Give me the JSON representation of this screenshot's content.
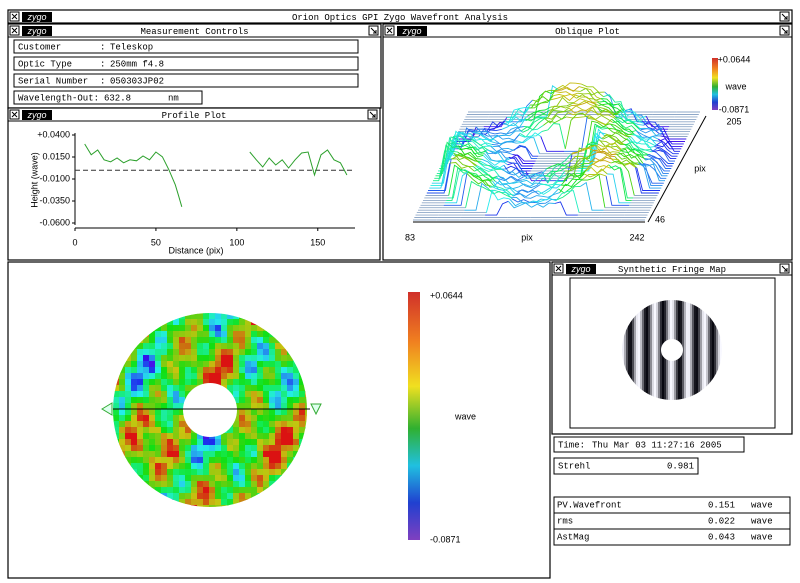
{
  "window": {
    "title": "Orion Optics GPI Zygo Wavefront Analysis",
    "logo": "zygo"
  },
  "measurement_controls": {
    "title": "Measurement Controls",
    "separator": ":",
    "fields": [
      {
        "label": "Customer",
        "value": "Teleskop"
      },
      {
        "label": "Optic Type",
        "value": "250mm f4.8"
      },
      {
        "label": "Serial Number",
        "value": "050303JP02"
      },
      {
        "label": "Wavelength-Out:",
        "value": "632.8",
        "unit": "nm"
      }
    ]
  },
  "oblique_plot": {
    "title": "Oblique Plot",
    "scale_max": "+0.0644",
    "scale_unit": "wave",
    "scale_min": "-0.0871",
    "y_axis": {
      "label": "pix",
      "max": "205",
      "min": "46"
    },
    "x_axis": {
      "label": "pix",
      "min": "83",
      "max": "242"
    }
  },
  "profile_plot": {
    "title": "Profile Plot",
    "type": "line",
    "xlabel": "Distance (pix)",
    "ylabel": "Height (wave)",
    "color": "#2ca02c",
    "x": [
      6,
      10,
      14,
      18,
      22,
      26,
      30,
      34,
      38,
      42,
      46,
      50,
      54,
      58,
      62,
      64,
      66,
      85,
      108,
      112,
      116,
      120,
      124,
      128,
      132,
      136,
      140,
      144,
      148,
      152,
      156,
      160,
      164,
      168
    ],
    "values": [
      0.0298,
      0.0175,
      0.023,
      0.0118,
      0.0095,
      0.0139,
      0.0084,
      0.0118,
      0.0107,
      0.0161,
      0.0118,
      0.0207,
      0.0152,
      0.0005,
      -0.0166,
      -0.0291,
      -0.0416,
      null,
      0.0207,
      0.0118,
      0.0036,
      0.0139,
      0.0059,
      0.0118,
      0.0025,
      0.0118,
      0.0196,
      0.0207,
      -0.0055,
      0.0175,
      0.023,
      0.0118,
      0.0084,
      -0.0055
    ],
    "xlim": [
      0,
      173
    ],
    "ylim": [
      -0.06,
      0.04
    ],
    "xticks": [
      0,
      50,
      100,
      150
    ],
    "yticks": [
      {
        "value": 0.04,
        "label": "+0.0400"
      },
      {
        "value": 0.015,
        "label": "0.0150"
      },
      {
        "value": -0.01,
        "label": "-0.0100"
      },
      {
        "value": -0.035,
        "label": "-0.0350"
      },
      {
        "value": -0.06,
        "label": "-0.0600"
      }
    ]
  },
  "phase_map": {
    "scale_max": "+0.0644",
    "scale_unit": "wave",
    "scale_min": "-0.0871"
  },
  "fringe_map": {
    "title": "Synthetic Fringe Map"
  },
  "time": {
    "label": "Time:",
    "value": "Thu Mar 03 11:27:16 2005"
  },
  "strehl": {
    "label": "Strehl",
    "value": "0.981"
  },
  "results": {
    "rows": [
      [
        "PV.Wavefront",
        "0.151",
        "wave"
      ],
      [
        "rms",
        "0.022",
        "wave"
      ],
      [
        "AstMag",
        "0.043",
        "wave"
      ]
    ]
  }
}
